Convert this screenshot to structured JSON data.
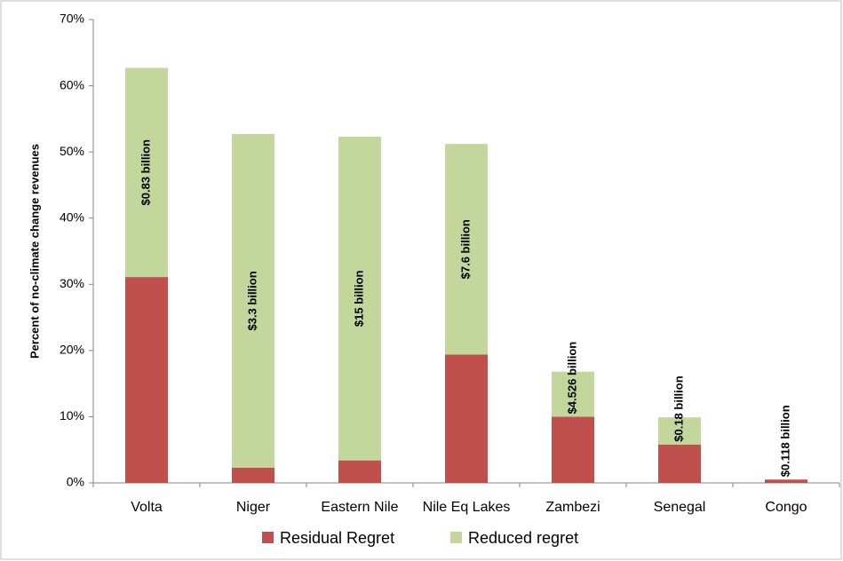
{
  "chart_data": {
    "type": "stacked_bar",
    "ylabel": "Percent of no-climate change revenues",
    "categories": [
      "Volta",
      "Niger",
      "Eastern Nile",
      "Nile Eq Lakes",
      "Zambezi",
      "Senegal",
      "Congo"
    ],
    "series": [
      {
        "name": "Residual Regret",
        "color": "#c0504d",
        "values": [
          31.1,
          2.3,
          3.4,
          19.4,
          10.0,
          5.8,
          0.5
        ]
      },
      {
        "name": "Reduced regret",
        "color": "#c3d69b",
        "values": [
          31.6,
          50.4,
          48.9,
          31.8,
          6.8,
          4.1,
          0
        ]
      }
    ],
    "annotations": [
      "$0.83 billion",
      "$3.3 billion",
      "$15 billion",
      "$7.6 billion",
      "$4.526 billion",
      "$0.18 billion",
      "$0.118 billion"
    ],
    "ylim": [
      0,
      70
    ],
    "yticks": [
      {
        "value": 0,
        "label": "0%"
      },
      {
        "value": 10,
        "label": "10%"
      },
      {
        "value": 20,
        "label": "20%"
      },
      {
        "value": 30,
        "label": "30%"
      },
      {
        "value": 40,
        "label": "40%"
      },
      {
        "value": 50,
        "label": "50%"
      },
      {
        "value": 60,
        "label": "60%"
      },
      {
        "value": 70,
        "label": "70%"
      }
    ],
    "grid": false,
    "legend": "bottom"
  }
}
